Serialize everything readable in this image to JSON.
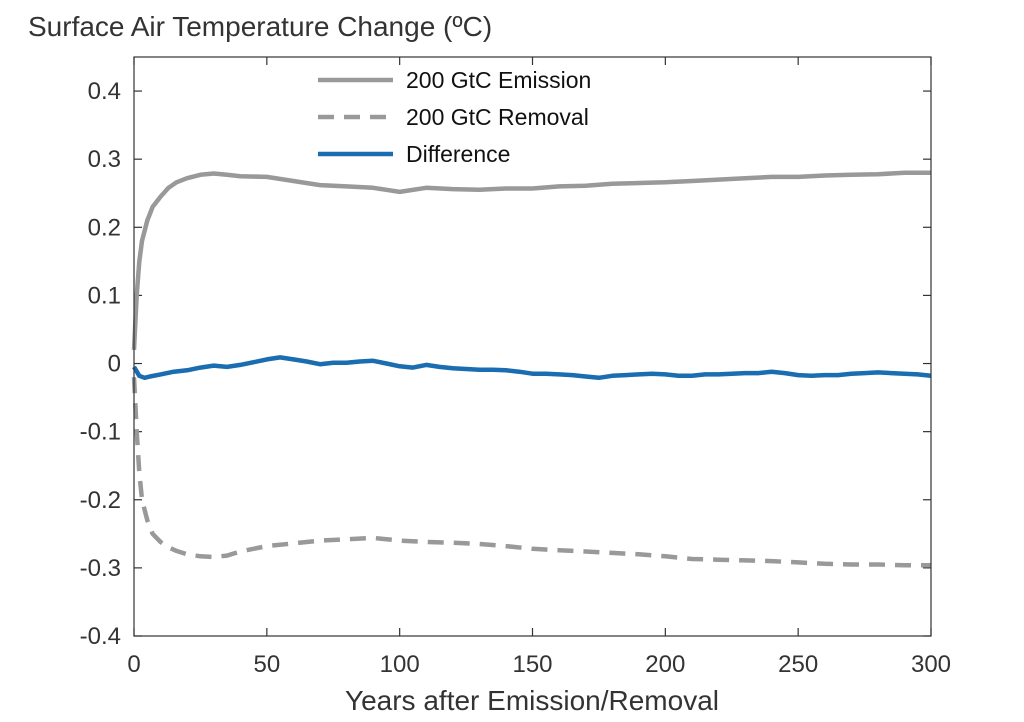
{
  "chart_data": {
    "type": "line",
    "title": "Surface Air Temperature Change (ºC)",
    "xlabel": "Years after Emission/Removal",
    "ylabel": "",
    "xlim": [
      0,
      300
    ],
    "ylim": [
      -0.4,
      0.45
    ],
    "xticks": [
      0,
      50,
      100,
      150,
      200,
      250,
      300
    ],
    "xtick_labels": [
      "0",
      "50",
      "100",
      "150",
      "200",
      "250",
      "300"
    ],
    "yticks": [
      -0.4,
      -0.3,
      -0.2,
      -0.1,
      0,
      0.1,
      0.2,
      0.3,
      0.4
    ],
    "ytick_labels": [
      "-0.4",
      "-0.3",
      "-0.2",
      "-0.1",
      "0",
      "0.1",
      "0.2",
      "0.3",
      "0.4"
    ],
    "grid": false,
    "legend_position": "top-center",
    "colors": {
      "gray": "#999999",
      "blue": "#1a6db0",
      "axis": "#333333"
    },
    "series": [
      {
        "name": "200 GtC Emission",
        "style": "solid",
        "color": "#999999",
        "x": [
          0,
          1,
          2,
          3,
          5,
          7,
          10,
          13,
          16,
          20,
          25,
          30,
          35,
          40,
          50,
          60,
          70,
          80,
          90,
          100,
          110,
          120,
          130,
          140,
          150,
          160,
          170,
          180,
          190,
          200,
          210,
          220,
          230,
          240,
          250,
          260,
          270,
          280,
          290,
          300
        ],
        "y": [
          0.02,
          0.1,
          0.15,
          0.18,
          0.21,
          0.23,
          0.245,
          0.258,
          0.266,
          0.272,
          0.277,
          0.279,
          0.277,
          0.275,
          0.274,
          0.268,
          0.262,
          0.26,
          0.258,
          0.252,
          0.258,
          0.256,
          0.255,
          0.257,
          0.257,
          0.26,
          0.261,
          0.264,
          0.265,
          0.266,
          0.268,
          0.27,
          0.272,
          0.274,
          0.274,
          0.276,
          0.277,
          0.278,
          0.28,
          0.28
        ]
      },
      {
        "name": "200 GtC Removal",
        "style": "dashed",
        "color": "#999999",
        "x": [
          0,
          1,
          2,
          3,
          5,
          7,
          10,
          13,
          16,
          20,
          25,
          30,
          35,
          40,
          50,
          60,
          70,
          80,
          90,
          100,
          110,
          120,
          130,
          140,
          150,
          160,
          170,
          180,
          190,
          200,
          210,
          220,
          230,
          240,
          250,
          260,
          270,
          280,
          290,
          300
        ],
        "y": [
          -0.02,
          -0.1,
          -0.16,
          -0.2,
          -0.23,
          -0.25,
          -0.262,
          -0.27,
          -0.275,
          -0.28,
          -0.283,
          -0.284,
          -0.282,
          -0.276,
          -0.268,
          -0.264,
          -0.26,
          -0.258,
          -0.256,
          -0.26,
          -0.262,
          -0.263,
          -0.265,
          -0.268,
          -0.272,
          -0.274,
          -0.276,
          -0.278,
          -0.28,
          -0.283,
          -0.287,
          -0.288,
          -0.289,
          -0.29,
          -0.292,
          -0.294,
          -0.295,
          -0.295,
          -0.296,
          -0.296
        ]
      },
      {
        "name": "Difference",
        "style": "solid",
        "color": "#1a6db0",
        "x": [
          0,
          2,
          4,
          6,
          10,
          15,
          20,
          25,
          30,
          35,
          40,
          45,
          50,
          55,
          60,
          65,
          70,
          75,
          80,
          85,
          90,
          95,
          100,
          105,
          110,
          115,
          120,
          125,
          130,
          135,
          140,
          145,
          150,
          155,
          160,
          165,
          170,
          175,
          180,
          185,
          190,
          195,
          200,
          205,
          210,
          215,
          220,
          225,
          230,
          235,
          240,
          245,
          250,
          255,
          260,
          265,
          270,
          275,
          280,
          285,
          290,
          295,
          300
        ],
        "y": [
          -0.005,
          -0.018,
          -0.021,
          -0.019,
          -0.016,
          -0.012,
          -0.01,
          -0.006,
          -0.003,
          -0.005,
          -0.002,
          0.002,
          0.006,
          0.009,
          0.006,
          0.003,
          -0.001,
          0.001,
          0.001,
          0.003,
          0.004,
          0.0,
          -0.004,
          -0.006,
          -0.002,
          -0.005,
          -0.007,
          -0.008,
          -0.009,
          -0.009,
          -0.01,
          -0.012,
          -0.015,
          -0.015,
          -0.016,
          -0.017,
          -0.019,
          -0.021,
          -0.018,
          -0.017,
          -0.016,
          -0.015,
          -0.016,
          -0.018,
          -0.018,
          -0.016,
          -0.016,
          -0.015,
          -0.014,
          -0.014,
          -0.012,
          -0.014,
          -0.017,
          -0.018,
          -0.017,
          -0.017,
          -0.015,
          -0.014,
          -0.013,
          -0.014,
          -0.015,
          -0.016,
          -0.018
        ]
      }
    ]
  }
}
